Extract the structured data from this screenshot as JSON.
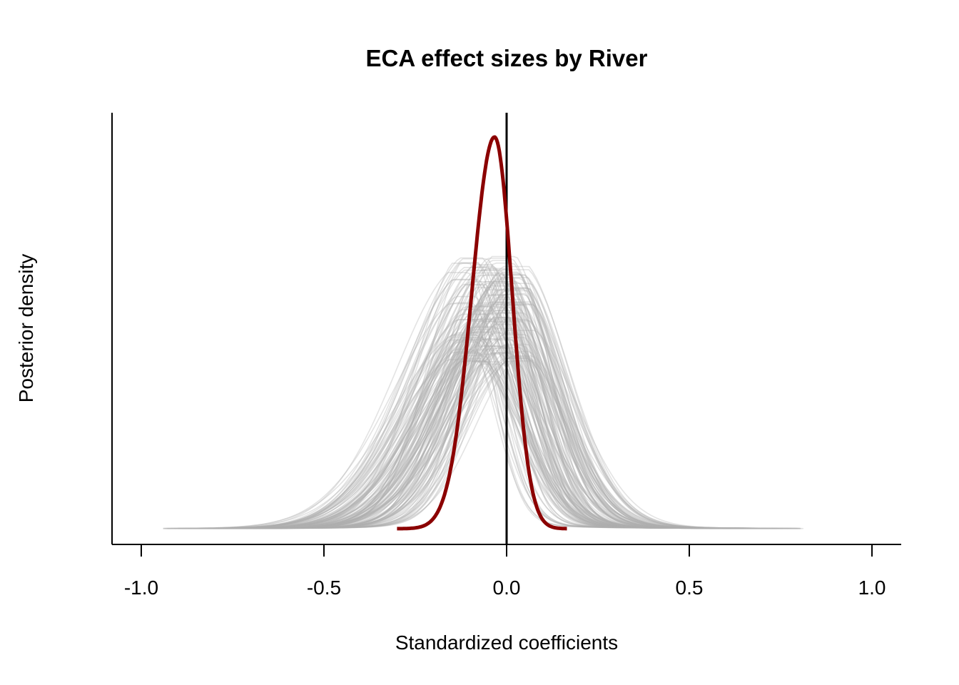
{
  "chart_data": {
    "type": "line",
    "title": "ECA effect sizes by River",
    "xlabel": "Standardized coefficients",
    "ylabel": "Posterior density",
    "xlim": [
      -1.08,
      1.08
    ],
    "xticks": [
      -1.0,
      -0.5,
      0.0,
      0.5,
      1.0
    ],
    "xtick_labels": [
      "-1.0",
      "-0.5",
      "0.0",
      "0.5",
      "1.0"
    ],
    "y_axis_ticks_shown": false,
    "grid": false,
    "legend": "none",
    "reference_line": {
      "x": 0.0,
      "color": "#000000"
    },
    "summary_density": {
      "name": "overall",
      "color": "#8B0000",
      "x_range": [
        -0.3,
        0.165
      ],
      "mode": -0.033,
      "peak_relative_height": 1.0
    },
    "river_densities": {
      "color": "#B0B0B0",
      "count_approx": 150,
      "x_range": [
        -0.94,
        0.84
      ],
      "mode_range": [
        -0.12,
        0.05
      ],
      "peak_relative_height_range": [
        0.42,
        0.7
      ]
    }
  }
}
